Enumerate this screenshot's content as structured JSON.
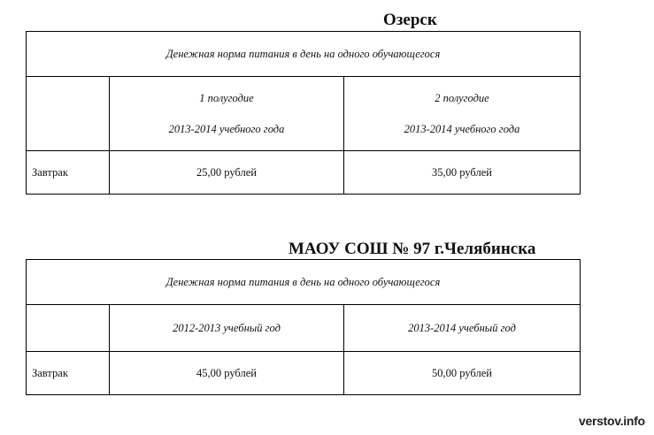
{
  "tables": [
    {
      "title": "Озерск",
      "caption": "Денежная норма питания в день на одного обучающегося",
      "columns": [
        {
          "line1": "1 полугодие",
          "line2": "2013-2014 учебного года"
        },
        {
          "line1": "2 полугодие",
          "line2": "2013-2014 учебного года"
        }
      ],
      "row": {
        "label": "Завтрак",
        "values": [
          "25,00 рублей",
          "35,00 рублей"
        ]
      }
    },
    {
      "title": "МАОУ СОШ № 97 г.Челябинска",
      "caption": "Денежная норма питания в день на одного обучающегося",
      "columns": [
        {
          "line1": "2012-2013 учебный год"
        },
        {
          "line1": "2013-2014 учебный год"
        }
      ],
      "row": {
        "label": "Завтрак",
        "values": [
          "45,00 рублей",
          "50,00 рублей"
        ]
      }
    }
  ],
  "watermark": "verstov.info"
}
